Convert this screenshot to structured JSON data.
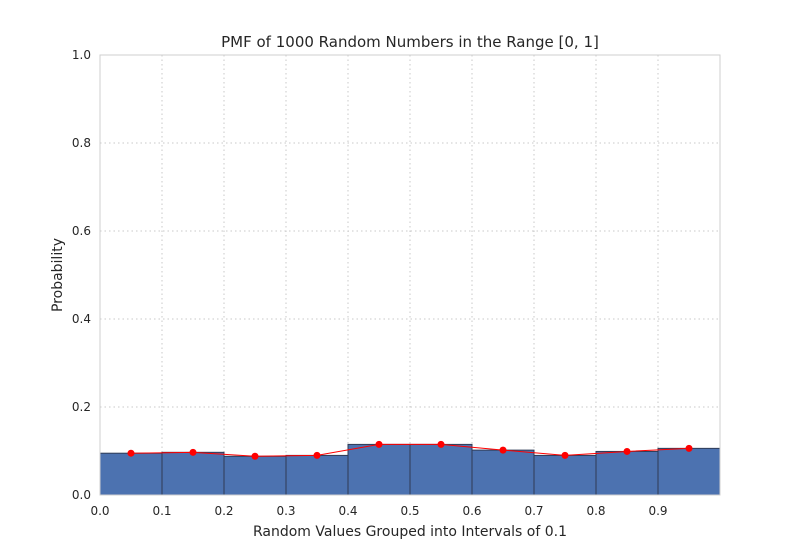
{
  "chart_data": {
    "type": "bar",
    "title": "PMF of 1000 Random Numbers in the Range [0, 1]",
    "xlabel": "Random Values Grouped into Intervals of 0.1",
    "ylabel": "Probability",
    "xlim": [
      0,
      1
    ],
    "ylim": [
      0,
      1
    ],
    "x_ticks": [
      "0.0",
      "0.1",
      "0.2",
      "0.3",
      "0.4",
      "0.5",
      "0.6",
      "0.7",
      "0.8",
      "0.9"
    ],
    "y_ticks": [
      "0.0",
      "0.2",
      "0.4",
      "0.6",
      "0.8",
      "1.0"
    ],
    "bin_edges": [
      0,
      0.1,
      0.2,
      0.3,
      0.4,
      0.5,
      0.6,
      0.7,
      0.8,
      0.9,
      1.0
    ],
    "values": [
      0.095,
      0.097,
      0.088,
      0.09,
      0.115,
      0.115,
      0.102,
      0.09,
      0.099,
      0.106
    ],
    "line_overlay": {
      "x": [
        0.05,
        0.15,
        0.25,
        0.35,
        0.45,
        0.55,
        0.65,
        0.75,
        0.85,
        0.95
      ],
      "y": [
        0.095,
        0.097,
        0.088,
        0.09,
        0.115,
        0.115,
        0.102,
        0.09,
        0.099,
        0.106
      ]
    },
    "grid": true,
    "colors": {
      "bar": "#4c72b0",
      "line": "#ff0000",
      "marker": "#ff0000"
    }
  }
}
